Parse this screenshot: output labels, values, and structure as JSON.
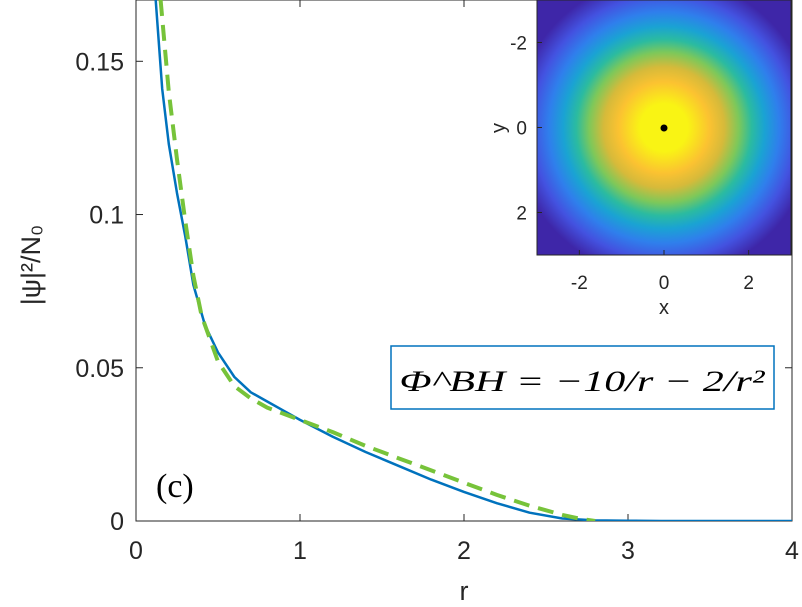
{
  "chart_data": [
    {
      "type": "line",
      "xlabel": "r",
      "ylabel": "|ψ|²/N₀",
      "xlim": [
        0,
        4
      ],
      "ylim": [
        0,
        0.17
      ],
      "xticks": [
        0,
        1,
        2,
        3,
        4
      ],
      "xtick_labels": [
        "0",
        "1",
        "2",
        "3",
        "4"
      ],
      "yticks": [
        0,
        0.05,
        0.1,
        0.15
      ],
      "ytick_labels": [
        "0",
        "0.05",
        "0.1",
        "0.15"
      ],
      "grid": false,
      "panel_label": "(c)",
      "annotation": "Φ^BH = −10/r − 2/r²",
      "series": [
        {
          "style": "solid",
          "color": "#0072BD",
          "x": [
            0.12,
            0.16,
            0.2,
            0.25,
            0.3,
            0.35,
            0.42,
            0.5,
            0.6,
            0.7,
            0.8,
            0.9,
            1.0,
            1.2,
            1.4,
            1.6,
            1.8,
            2.0,
            2.2,
            2.4,
            2.6,
            2.8,
            3.0,
            3.2,
            3.5,
            4.0
          ],
          "y": [
            0.17,
            0.141,
            0.123,
            0.107,
            0.093,
            0.077,
            0.064,
            0.055,
            0.047,
            0.042,
            0.039,
            0.036,
            0.033,
            0.0275,
            0.0225,
            0.018,
            0.0135,
            0.0095,
            0.0058,
            0.0027,
            0.0008,
            0.0002,
            0.0001,
            0.0,
            0.0,
            0.0
          ]
        },
        {
          "style": "dashed",
          "color": "#77C33A",
          "x": [
            0.15,
            0.2,
            0.25,
            0.3,
            0.35,
            0.4,
            0.5,
            0.6,
            0.7,
            0.8,
            1.0,
            1.2,
            1.4,
            1.6,
            1.8,
            2.0,
            2.2,
            2.4,
            2.6,
            2.7,
            2.8
          ],
          "y": [
            0.17,
            0.14,
            0.118,
            0.098,
            0.08,
            0.067,
            0.052,
            0.044,
            0.04,
            0.037,
            0.033,
            0.029,
            0.0245,
            0.0205,
            0.0165,
            0.0125,
            0.0085,
            0.005,
            0.002,
            0.0008,
            0.0
          ]
        }
      ]
    },
    {
      "type": "heatmap",
      "xlabel": "x",
      "ylabel": "y",
      "xlim": [
        -3,
        3
      ],
      "ylim": [
        -3,
        3
      ],
      "y_reversed": true,
      "xticks": [
        -2,
        0,
        2
      ],
      "xtick_labels": [
        "-2",
        "0",
        "2"
      ],
      "yticks": [
        -2,
        0,
        2
      ],
      "ytick_labels": [
        "-2",
        "0",
        "2"
      ],
      "center_marker": [
        0,
        0
      ],
      "colormap": [
        "#3E26A8",
        "#4352E0",
        "#2F7FEC",
        "#1AA3D3",
        "#2BBBA0",
        "#7DC85A",
        "#D6BA3A",
        "#FBC231",
        "#F9F414"
      ],
      "profile": "radially symmetric, maximum at origin"
    }
  ]
}
